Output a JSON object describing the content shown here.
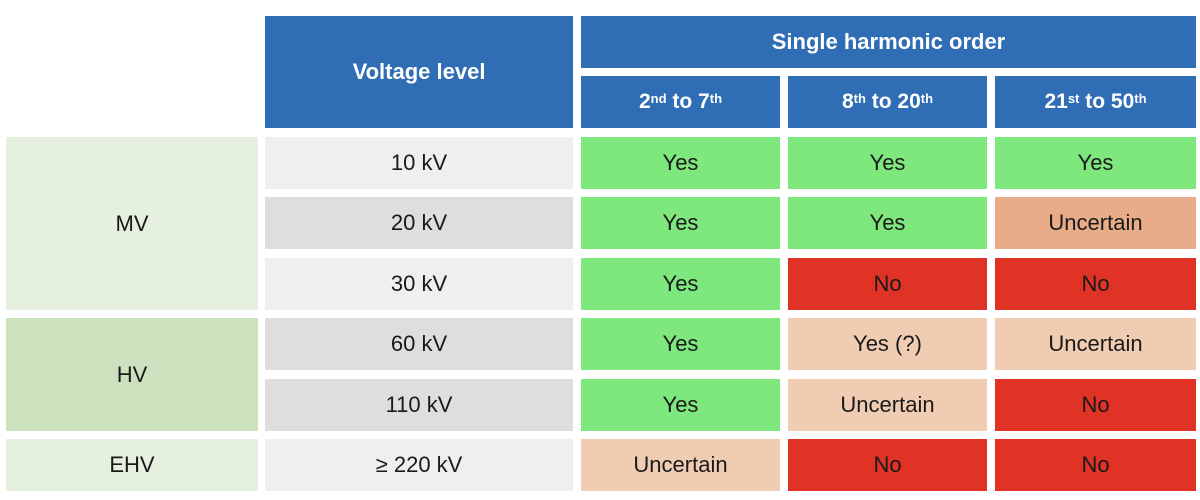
{
  "colors": {
    "header_blue": "#2f6db4",
    "yes_green": "#7ee87e",
    "uncertain_light": "#f0cdb2",
    "uncertain_dark": "#e8ad88",
    "no_red": "#e03325",
    "group_light": "#e5f0de",
    "group_dark": "#cce2be",
    "voltage_light": "#efefef",
    "voltage_dark": "#dedede"
  },
  "header": {
    "voltage_level": "Voltage level",
    "group_title": "Single harmonic order",
    "columns": [
      {
        "start_num": "2",
        "start_sup": "nd",
        "mid": " to ",
        "end_num": "7",
        "end_sup": "th"
      },
      {
        "start_num": "8",
        "start_sup": "th",
        "mid": " to ",
        "end_num": "20",
        "end_sup": "th"
      },
      {
        "start_num": "21",
        "start_sup": "st",
        "mid": " to ",
        "end_num": "50",
        "end_sup": "th"
      }
    ]
  },
  "groups": [
    {
      "label": "MV",
      "shade": "light"
    },
    {
      "label": "HV",
      "shade": "dark"
    },
    {
      "label": "EHV",
      "shade": "light"
    }
  ],
  "rows": [
    {
      "voltage": "10 kV",
      "shade": "light",
      "values": [
        {
          "text": "Yes",
          "status": "yes"
        },
        {
          "text": "Yes",
          "status": "yes"
        },
        {
          "text": "Yes",
          "status": "yes"
        }
      ]
    },
    {
      "voltage": "20 kV",
      "shade": "dark",
      "values": [
        {
          "text": "Yes",
          "status": "yes"
        },
        {
          "text": "Yes",
          "status": "yes"
        },
        {
          "text": "Uncertain",
          "status": "uncertain-dark"
        }
      ]
    },
    {
      "voltage": "30 kV",
      "shade": "light",
      "values": [
        {
          "text": "Yes",
          "status": "yes"
        },
        {
          "text": "No",
          "status": "no"
        },
        {
          "text": "No",
          "status": "no"
        }
      ]
    },
    {
      "voltage": "60 kV",
      "shade": "dark",
      "values": [
        {
          "text": "Yes",
          "status": "yes"
        },
        {
          "text": "Yes (?)",
          "status": "uncertain"
        },
        {
          "text": "Uncertain",
          "status": "uncertain"
        }
      ]
    },
    {
      "voltage": "110 kV",
      "shade": "dark",
      "values": [
        {
          "text": "Yes",
          "status": "yes"
        },
        {
          "text": "Uncertain",
          "status": "uncertain"
        },
        {
          "text": "No",
          "status": "no"
        }
      ]
    },
    {
      "voltage": "≥ 220 kV",
      "shade": "light",
      "values": [
        {
          "text": "Uncertain",
          "status": "uncertain"
        },
        {
          "text": "No",
          "status": "no"
        },
        {
          "text": "No",
          "status": "no"
        }
      ]
    }
  ]
}
